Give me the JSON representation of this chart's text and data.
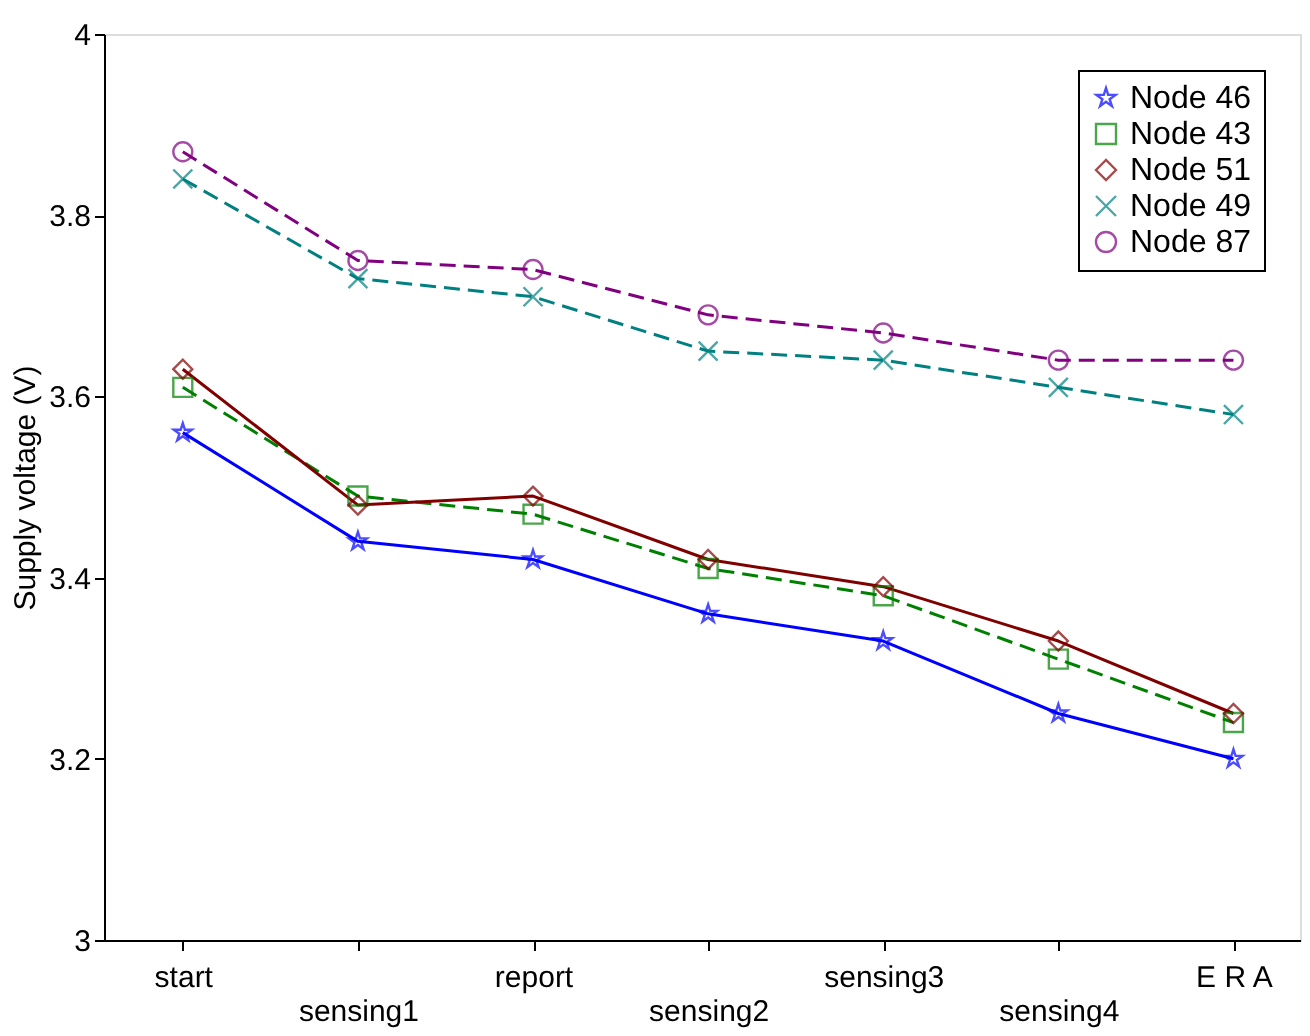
{
  "chart_data": {
    "type": "line",
    "ylabel": "Supply voltage (V)",
    "categories": [
      "start",
      "sensing1",
      "report",
      "sensing2",
      "sensing3",
      "sensing4",
      "E R A"
    ],
    "ylim": [
      3,
      4
    ],
    "yticks": [
      {
        "value": 3,
        "label": "3"
      },
      3.2,
      3.4,
      3.6,
      3.8,
      {
        "value": 4,
        "label": "4"
      }
    ],
    "grid": false,
    "legend": "top right",
    "series": [
      {
        "name": "Node 46",
        "color": "#0000ff",
        "marker": "star",
        "line_style": "solid",
        "values": [
          3.56,
          3.44,
          3.42,
          3.36,
          3.33,
          3.25,
          3.2
        ]
      },
      {
        "name": "Node 43",
        "color": "#008000",
        "marker": "square",
        "line_style": "dashed",
        "values": [
          3.61,
          3.49,
          3.47,
          3.41,
          3.38,
          3.31,
          3.24
        ]
      },
      {
        "name": "Node 51",
        "color": "#800000",
        "marker": "diamond",
        "line_style": "solid",
        "values": [
          3.63,
          3.48,
          3.49,
          3.42,
          3.39,
          3.33,
          3.25
        ]
      },
      {
        "name": "Node 49",
        "color": "#008080",
        "marker": "cross",
        "line_style": "dashed",
        "values": [
          3.84,
          3.73,
          3.71,
          3.65,
          3.64,
          3.61,
          3.58
        ]
      },
      {
        "name": "Node 87",
        "color": "#800080",
        "marker": "circle",
        "line_style": "dashed",
        "values": [
          3.87,
          3.75,
          3.74,
          3.69,
          3.67,
          3.64,
          3.64
        ]
      }
    ]
  }
}
